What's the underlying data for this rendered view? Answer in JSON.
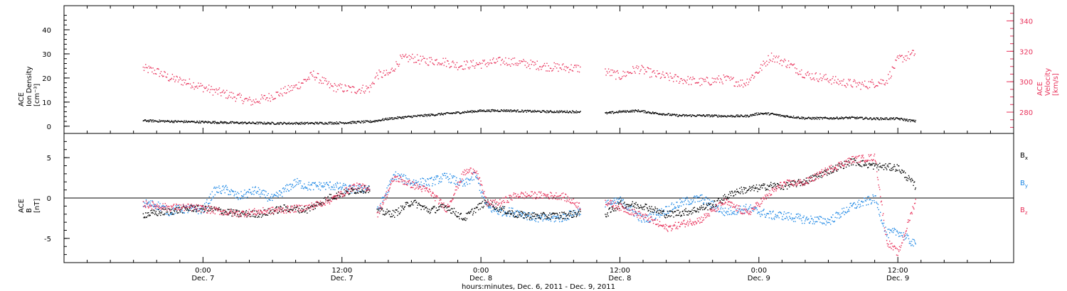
{
  "chart_data": [
    {
      "type": "scatter",
      "panel": "density-velocity",
      "left_axis": {
        "label": [
          "ACE",
          "Ion Density",
          "[cm⁻³]"
        ],
        "ylim": [
          -3,
          50
        ],
        "ticks": [
          0,
          10,
          20,
          30,
          40
        ]
      },
      "right_axis": {
        "label": [
          "ACE",
          "Velocity",
          "[km/s]"
        ],
        "ylim": [
          266,
          350
        ],
        "ticks": [
          280,
          300,
          320,
          340
        ],
        "color": "#e8315a"
      },
      "series": [
        {
          "axis": "left",
          "color": "#000000",
          "segments": [
            {
              "x": [
                -5.2,
                -3,
                0,
                3,
                6,
                9,
                12,
                14.5
              ],
              "y": [
                2.5,
                2.2,
                1.9,
                1.6,
                1.4,
                1.4,
                1.6,
                2.1
              ]
            },
            {
              "x": [
                14.5,
                16,
                18,
                20,
                22,
                24,
                26,
                28,
                30,
                32.6
              ],
              "y": [
                2.1,
                3.3,
                4.2,
                5,
                5.8,
                6.6,
                6.7,
                6.4,
                6.2,
                6.2
              ]
            },
            {
              "x": [
                34.7,
                36,
                37.5,
                39,
                41,
                43,
                45,
                47,
                48,
                49,
                50,
                52,
                54,
                56,
                58,
                60,
                61.5
              ],
              "y": [
                5.5,
                6.2,
                6.6,
                5.6,
                4.6,
                4.6,
                4.4,
                4.4,
                5.5,
                5.3,
                4.5,
                3.5,
                3.5,
                3.7,
                3.3,
                3.3,
                2.2
              ]
            }
          ]
        },
        {
          "axis": "right",
          "color": "#e8315a",
          "segments": [
            {
              "x": [
                -5.2,
                -4,
                -3,
                -1,
                1,
                3,
                4.2,
                6,
                8,
                9.5,
                11,
                13,
                14.4,
                15,
                16,
                17,
                18,
                19,
                20.5,
                22,
                24,
                26,
                28,
                30,
                32.6
              ],
              "y": [
                309,
                307,
                303,
                299,
                294,
                290,
                287,
                291,
                297,
                305,
                297,
                295,
                296,
                305,
                305,
                315,
                316,
                314,
                314,
                311,
                312,
                314,
                312,
                310,
                309
              ]
            },
            {
              "x": [
                34.7,
                36,
                37.5,
                39,
                41,
                43,
                45,
                46.7,
                48,
                49,
                50.5,
                52,
                54,
                55,
                57,
                59,
                60,
                61.5
              ],
              "y": [
                307,
                304,
                309,
                305,
                302,
                300,
                302,
                299,
                308,
                317,
                312,
                305,
                302,
                300,
                298,
                301,
                315,
                319
              ]
            }
          ]
        }
      ]
    },
    {
      "type": "scatter",
      "panel": "magnetic-field",
      "left_axis": {
        "label": [
          "ACE",
          "B",
          "[nT]"
        ],
        "ylim": [
          -8,
          8
        ],
        "ticks": [
          -5,
          0,
          5
        ]
      },
      "legend": [
        {
          "text": "B",
          "sub": "x",
          "color": "#000000"
        },
        {
          "text": "B",
          "sub": "y",
          "color": "#1e88e5"
        },
        {
          "text": "B",
          "sub": "z",
          "color": "#e8315a"
        }
      ],
      "series": [
        {
          "name": "Bx",
          "color": "#000000",
          "segments": [
            {
              "x": [
                -5.2,
                -3,
                -1,
                1,
                3,
                5,
                7,
                9,
                11,
                13,
                14.4
              ],
              "y": [
                -2,
                -1.6,
                -1.2,
                -1.4,
                -1.9,
                -1.9,
                -1.2,
                -1.4,
                0.2,
                1,
                1.2
              ]
            },
            {
              "x": [
                15,
                16.5,
                18,
                19.5,
                21,
                22.5,
                23.5,
                24.5,
                25.5,
                27,
                29,
                31,
                32.6
              ],
              "y": [
                -1.6,
                -1.9,
                -0.4,
                -1.5,
                -1,
                -2.5,
                -1.3,
                -0.4,
                -1.2,
                -2,
                -2.2,
                -2.1,
                -1.8
              ]
            },
            {
              "x": [
                34.7,
                36,
                38,
                40,
                42,
                44,
                46,
                48,
                49,
                50,
                52,
                54,
                56,
                58,
                60,
                61.5
              ],
              "y": [
                -2,
                -0.7,
                -0.9,
                -2,
                -1.6,
                -0.8,
                0.9,
                1.3,
                1.6,
                1.5,
                2.1,
                3.4,
                4.6,
                4,
                3.8,
                1.5
              ]
            }
          ]
        },
        {
          "name": "By",
          "color": "#1e88e5",
          "segments": [
            {
              "x": [
                -5.2,
                -4,
                -3,
                -2,
                0,
                1,
                2,
                3,
                4.5,
                6,
                7,
                8,
                9,
                11,
                13,
                14.4
              ],
              "y": [
                -0.6,
                -0.8,
                -1.6,
                -1.3,
                -1.4,
                1,
                1.1,
                0.2,
                1,
                -0.1,
                1,
                2,
                1.5,
                1.6,
                1.1,
                1.4
              ]
            },
            {
              "x": [
                15,
                16.5,
                18,
                19.5,
                21,
                22.5,
                23.5,
                24.5,
                25.5,
                27,
                29,
                31,
                32.6
              ],
              "y": [
                -1.7,
                2.9,
                2,
                2,
                2.7,
                1.7,
                2.9,
                -1.1,
                -1.6,
                -1.7,
                -2.5,
                -2.4,
                -1.5
              ]
            },
            {
              "x": [
                34.7,
                36,
                38,
                40,
                41.5,
                43,
                45,
                47,
                49,
                50,
                52,
                54,
                56,
                58,
                59,
                60,
                61.5
              ],
              "y": [
                -0.8,
                -0.3,
                -2.7,
                -1.4,
                -0.4,
                0,
                -1.7,
                -1.2,
                -2.1,
                -2.1,
                -2.6,
                -2.8,
                -1,
                0,
                -4.4,
                -4.1,
                -5.8
              ]
            }
          ]
        },
        {
          "name": "Bz",
          "color": "#e8315a",
          "segments": [
            {
              "x": [
                -5.2,
                -3,
                -1,
                1,
                3,
                5,
                7,
                9,
                11,
                13,
                14.4
              ],
              "y": [
                -0.7,
                -1.1,
                -1.1,
                -1.5,
                -1.9,
                -1.6,
                -1.4,
                -1.1,
                -0.2,
                1.5,
                1.3
              ]
            },
            {
              "x": [
                15,
                16.5,
                18,
                19.5,
                21,
                22.5,
                23.5,
                24.5,
                25.5,
                27,
                29,
                31,
                32.6
              ],
              "y": [
                -2,
                2.6,
                1.7,
                0.9,
                -1.3,
                3.2,
                3.6,
                -0.6,
                -0.6,
                0.4,
                0.4,
                0.3,
                -1
              ]
            },
            {
              "x": [
                34.7,
                36,
                38,
                40,
                41.5,
                43,
                45,
                47,
                49,
                50,
                52,
                54,
                56,
                58,
                59,
                60,
                61.5
              ],
              "y": [
                -0.4,
                -1.1,
                -2.2,
                -3.7,
                -3.1,
                -2.6,
                -0.4,
                -1.9,
                0.7,
                1.8,
                2,
                3.6,
                4.8,
                5.1,
                -5.3,
                -6.8,
                -0.2
              ]
            }
          ]
        }
      ]
    }
  ],
  "x_axis": {
    "xlim": [
      -12,
      70
    ],
    "major_ticks": [
      0,
      12,
      24,
      36,
      48,
      60
    ],
    "minor_step": 2,
    "tick_labels": [
      {
        "x": 0,
        "time": "0:00",
        "day": "Dec. 7"
      },
      {
        "x": 12,
        "time": "12:00",
        "day": "Dec. 7"
      },
      {
        "x": 24,
        "time": "0:00",
        "day": "Dec. 8"
      },
      {
        "x": 36,
        "time": "12:00",
        "day": "Dec. 8"
      },
      {
        "x": 48,
        "time": "0:00",
        "day": "Dec. 9"
      },
      {
        "x": 60,
        "time": "12:00",
        "day": "Dec. 9"
      }
    ],
    "title": "hours:minutes, Dec.  6, 2011 - Dec.  9, 2011"
  }
}
